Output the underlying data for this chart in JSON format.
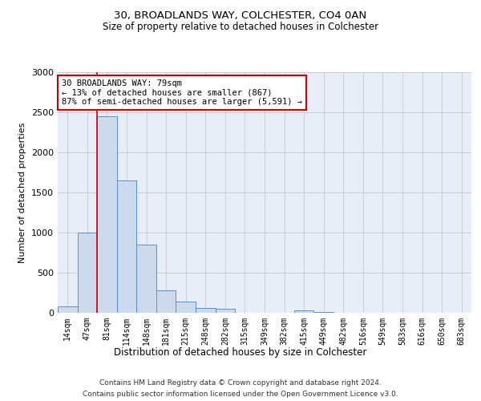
{
  "title1": "30, BROADLANDS WAY, COLCHESTER, CO4 0AN",
  "title2": "Size of property relative to detached houses in Colchester",
  "xlabel": "Distribution of detached houses by size in Colchester",
  "ylabel": "Number of detached properties",
  "categories": [
    "14sqm",
    "47sqm",
    "81sqm",
    "114sqm",
    "148sqm",
    "181sqm",
    "215sqm",
    "248sqm",
    "282sqm",
    "315sqm",
    "349sqm",
    "382sqm",
    "415sqm",
    "449sqm",
    "482sqm",
    "516sqm",
    "549sqm",
    "583sqm",
    "616sqm",
    "650sqm",
    "683sqm"
  ],
  "values": [
    80,
    1000,
    2450,
    1650,
    850,
    285,
    140,
    65,
    50,
    0,
    0,
    0,
    30,
    15,
    0,
    0,
    0,
    0,
    0,
    0,
    0
  ],
  "bar_color": "#cdd9ed",
  "bar_edge_color": "#5b8fd4",
  "ylim": [
    0,
    3000
  ],
  "yticks": [
    0,
    500,
    1000,
    1500,
    2000,
    2500,
    3000
  ],
  "property_line_color": "#cc0000",
  "annotation_text": "30 BROADLANDS WAY: 79sqm\n← 13% of detached houses are smaller (867)\n87% of semi-detached houses are larger (5,591) →",
  "annotation_box_color": "#ffffff",
  "annotation_border_color": "#cc0000",
  "footer1": "Contains HM Land Registry data © Crown copyright and database right 2024.",
  "footer2": "Contains public sector information licensed under the Open Government Licence v3.0.",
  "bg_color": "#ffffff",
  "plot_bg_color": "#e8eef8",
  "grid_color": "#c8c8c8"
}
